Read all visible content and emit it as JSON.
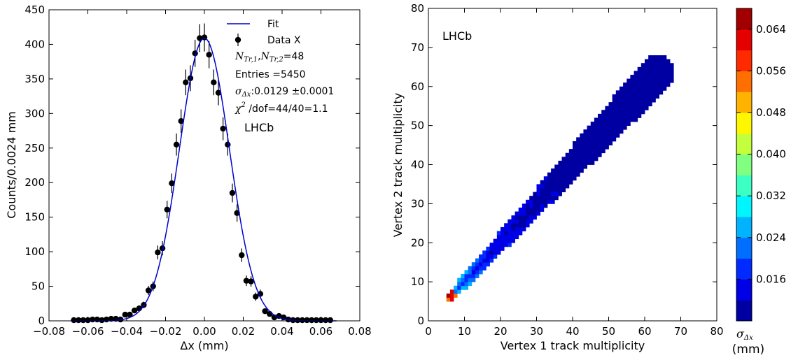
{
  "chart_data": [
    {
      "type": "scatter",
      "xlabel": "Δx (mm)",
      "ylabel": "Counts/0.0024 mm",
      "xlim": [
        -0.08,
        0.08
      ],
      "ylim": [
        0,
        450
      ],
      "xticks": [
        "−0.08",
        "−0.06",
        "−0.04",
        "−0.02",
        "0.00",
        "0.02",
        "0.04",
        "0.06",
        "0.08"
      ],
      "yticks": [
        "0",
        "50",
        "100",
        "150",
        "200",
        "250",
        "300",
        "350",
        "400",
        "450"
      ],
      "legend": {
        "fit_label": "Fit",
        "data_label": "Data X",
        "ntr_label": "N",
        "ntr_sub1": "Tr,1",
        "ntr_sep": ",",
        "ntr_sub2": "Tr,2",
        "ntr_value": "=48",
        "entries": "Entries =5450",
        "sigma_sym": "σ",
        "sigma_sub": "Δx",
        "sigma_value": ":0.0129 ±0.0001",
        "chi_sym": "χ",
        "chi_sup": "2",
        "chi_value": " /dof=44/40=1.1",
        "lhcb": "LHCb"
      },
      "fit": {
        "amplitude": 409,
        "mean": 0.0,
        "sigma": 0.0129
      },
      "series": [
        {
          "name": "Data X",
          "x": [
            -0.0672,
            -0.0648,
            -0.0624,
            -0.06,
            -0.0576,
            -0.0552,
            -0.0528,
            -0.0504,
            -0.048,
            -0.0456,
            -0.0432,
            -0.0408,
            -0.0384,
            -0.036,
            -0.0336,
            -0.0312,
            -0.0288,
            -0.0264,
            -0.024,
            -0.0216,
            -0.0192,
            -0.0168,
            -0.0144,
            -0.012,
            -0.0096,
            -0.0072,
            -0.0048,
            -0.0024,
            0.0,
            0.0024,
            0.0048,
            0.0072,
            0.0096,
            0.012,
            0.0144,
            0.0168,
            0.0192,
            0.0216,
            0.024,
            0.0264,
            0.0288,
            0.0312,
            0.0336,
            0.036,
            0.0384,
            0.0408,
            0.0432,
            0.0456,
            0.048,
            0.0504,
            0.0528,
            0.0552,
            0.0576,
            0.06,
            0.0624,
            0.0648
          ],
          "y": [
            1,
            1,
            1,
            1,
            2,
            2,
            1,
            2,
            3,
            3,
            2,
            9,
            9,
            15,
            18,
            23,
            44,
            50,
            99,
            105,
            161,
            199,
            255,
            289,
            345,
            351,
            387,
            409,
            410,
            385,
            345,
            330,
            278,
            255,
            185,
            156,
            95,
            58,
            57,
            35,
            39,
            14,
            10,
            5,
            7,
            5,
            2,
            1,
            1,
            1,
            1,
            1,
            1,
            1,
            1,
            1
          ]
        }
      ]
    },
    {
      "type": "heatmap",
      "xlabel": "Vertex 1 track multiplicity",
      "ylabel": "Vertex 2 track multiplicity",
      "xlim": [
        0,
        80
      ],
      "ylim": [
        0,
        80
      ],
      "xticks": [
        "0",
        "10",
        "20",
        "30",
        "40",
        "50",
        "60",
        "70",
        "80"
      ],
      "yticks": [
        "0",
        "10",
        "20",
        "30",
        "40",
        "50",
        "60",
        "70",
        "80"
      ],
      "lhcb": "LHCb",
      "colorbar": {
        "range": [
          0.008,
          0.068
        ],
        "ticks": [
          "0.016",
          "0.024",
          "0.032",
          "0.040",
          "0.048",
          "0.056",
          "0.064"
        ],
        "label_sym": "σ",
        "label_sub": "Δx",
        "label_unit": "(mm)"
      },
      "sigma_model": "sigma(n1,n2) ≈ 0.060 for ~(n1+n2)/2=5, falling to ~0.010 at 65",
      "band": {
        "min": 5,
        "max": 67
      }
    }
  ]
}
